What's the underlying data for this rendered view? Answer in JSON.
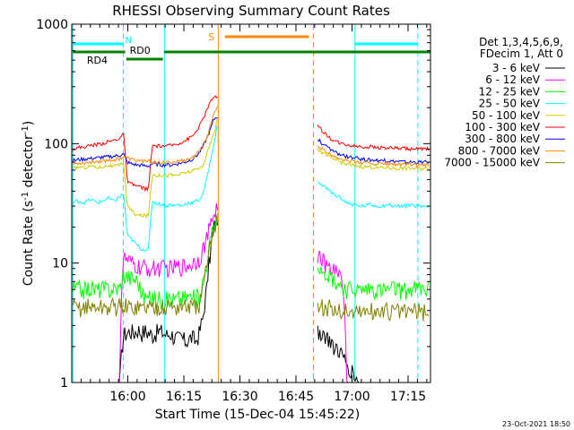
{
  "chart_data": {
    "type": "line",
    "title": "RHESSI Observing Summary Count Rates",
    "xlabel": "Start Time (15-Dec-04 15:45:22)",
    "ylabel": "Count Rate (s⁻¹ detector⁻¹)",
    "ylabel_main": "Count Rate (s",
    "ylabel_sup1": "-1",
    "ylabel_mid": " detector",
    "ylabel_sup2": "-1",
    "ylabel_end": ")",
    "yscale": "log",
    "ylim": [
      1,
      1000
    ],
    "xlim_minutes": [
      0,
      96
    ],
    "x_tick_labels": [
      "16:00",
      "16:15",
      "16:30",
      "16:45",
      "17:00",
      "17:15"
    ],
    "x_tick_minutes": [
      15,
      30,
      45,
      60,
      75,
      90
    ],
    "y_tick_labels": [
      "1",
      "10",
      "100",
      "1000"
    ],
    "y_tick_values": [
      1,
      10,
      100,
      1000
    ],
    "legend_header": [
      "Det 1,3,4,5,6,9,",
      "FDecim 1, Att 0"
    ],
    "legend_position": "right",
    "series": [
      {
        "name": "3 - 6 keV",
        "color": "#000000",
        "pre": [
          1,
          1,
          1,
          1,
          1,
          1,
          1,
          1,
          1,
          1,
          1,
          1,
          1,
          1,
          2.5,
          2.6,
          2.7,
          2.6,
          2.8,
          2.6,
          2.7,
          2.6,
          2.5,
          2.6,
          2.7,
          2.6,
          2.5,
          2.6,
          2.4,
          2.3,
          2.4,
          2.2,
          2.3,
          2.4,
          2.2,
          2.6,
          3.5,
          6,
          12,
          20,
          24
        ],
        "post": [
          2.7,
          2.5,
          2.2,
          2.0,
          1.7,
          1.4,
          1.2,
          1.0,
          1.0,
          1.0,
          1.0,
          1.0,
          1.0,
          1.0,
          1.0,
          1.0,
          1.0,
          1.0,
          1.0,
          1.0
        ]
      },
      {
        "name": "6 - 12 keV",
        "color": "#ff00ff",
        "pre": [
          1,
          1,
          1,
          1,
          1,
          1,
          1,
          1,
          1,
          1,
          1,
          1,
          1,
          1,
          11,
          10.5,
          10,
          9.5,
          9.3,
          9,
          9.2,
          9,
          9,
          9.1,
          9.2,
          9,
          9.1,
          9,
          9.2,
          9.3,
          9.4,
          9.5,
          9.7,
          10,
          10.5,
          11,
          13,
          16,
          20,
          26,
          30
        ],
        "post": [
          12,
          10,
          9,
          8.5,
          7.6,
          1,
          1,
          1,
          1,
          1,
          1,
          1,
          1,
          1,
          1,
          1,
          1,
          1,
          1,
          1
        ]
      },
      {
        "name": "12 - 25 keV",
        "color": "#00ff00",
        "pre": [
          6,
          6.1,
          6.2,
          6.0,
          6.1,
          6.2,
          6.1,
          6.0,
          6.2,
          6.1,
          6.0,
          6.2,
          6.1,
          6.2,
          8,
          7.8,
          7.6,
          7.4,
          7.2,
          5.5,
          5.2,
          5.0,
          5.2,
          5.0,
          5.1,
          4.8,
          5.0,
          5.2,
          4.9,
          5.1,
          5.0,
          5.2,
          5.3,
          5.1,
          5.2,
          5.3,
          7,
          10,
          15,
          20,
          25
        ],
        "post": [
          10,
          9,
          8,
          7,
          6.5,
          6,
          6.1,
          5.9,
          6,
          6.1,
          6,
          5.9,
          6,
          6.1,
          6,
          5.9,
          6,
          6.1,
          6,
          6
        ]
      },
      {
        "name": "25 - 50 keV",
        "color": "#00ffff",
        "pre": [
          32,
          33,
          33,
          32,
          33,
          34,
          33,
          32,
          33,
          34,
          35,
          33,
          34,
          36,
          38,
          17,
          16,
          15,
          14,
          13,
          13,
          13,
          33,
          32,
          31,
          31,
          30,
          31,
          30,
          31,
          30,
          31,
          32,
          32,
          33,
          34,
          38,
          50,
          70,
          100,
          140
        ],
        "post": [
          48,
          44,
          40,
          37,
          35,
          32,
          31,
          30,
          30,
          31,
          30,
          30,
          31,
          30,
          30,
          30,
          31,
          30,
          30,
          30
        ]
      },
      {
        "name": "50 - 100 keV",
        "color": "#cccc00",
        "pre": [
          62,
          63,
          64,
          63,
          64,
          65,
          64,
          63,
          64,
          65,
          66,
          64,
          65,
          66,
          70,
          30,
          28,
          26,
          25,
          25,
          25,
          25,
          55,
          55,
          54,
          55,
          54,
          55,
          54,
          55,
          56,
          57,
          58,
          59,
          60,
          62,
          66,
          80,
          100,
          120,
          160
        ],
        "post": [
          90,
          82,
          77,
          73,
          70,
          67,
          66,
          65,
          64,
          64,
          63,
          63,
          63,
          62,
          62,
          62,
          62,
          62,
          62,
          62
        ]
      },
      {
        "name": "100 - 300 keV",
        "color": "#ff0000",
        "pre": [
          90,
          92,
          93,
          94,
          95,
          97,
          98,
          99,
          100,
          102,
          104,
          106,
          108,
          112,
          120,
          48,
          46,
          45,
          44,
          43,
          42,
          42,
          95,
          96,
          95,
          96,
          95,
          97,
          98,
          100,
          103,
          106,
          110,
          115,
          125,
          140,
          160,
          190,
          220,
          250,
          240
        ],
        "post": [
          140,
          125,
          112,
          105,
          100,
          98,
          96,
          95,
          94,
          94,
          93,
          93,
          92,
          92,
          91,
          91,
          90,
          90,
          90,
          90
        ]
      },
      {
        "name": "300 - 800 keV",
        "color": "#0000ff",
        "pre": [
          72,
          73,
          74,
          74,
          75,
          75,
          76,
          76,
          77,
          77,
          78,
          78,
          79,
          80,
          82,
          70,
          68,
          67,
          66,
          66,
          65,
          65,
          68,
          67,
          67,
          66,
          67,
          66,
          67,
          68,
          69,
          70,
          72,
          74,
          78,
          84,
          95,
          110,
          130,
          160,
          170
        ],
        "post": [
          110,
          98,
          90,
          85,
          80,
          78,
          76,
          75,
          74,
          73,
          73,
          72,
          72,
          71,
          71,
          70,
          70,
          70,
          70,
          70
        ]
      },
      {
        "name": "800 - 7000 keV",
        "color": "#ff8800",
        "pre": [
          68,
          68,
          69,
          69,
          70,
          70,
          71,
          71,
          72,
          72,
          73,
          73,
          74,
          75,
          78,
          76,
          74,
          73,
          72,
          72,
          71,
          71,
          70,
          70,
          69,
          69,
          69,
          70,
          70,
          71,
          72,
          73,
          74,
          76,
          80,
          86,
          95,
          110,
          140,
          180,
          210
        ],
        "post": [
          95,
          88,
          82,
          78,
          75,
          72,
          71,
          70,
          69,
          69,
          68,
          68,
          68,
          67,
          67,
          67,
          67,
          66,
          66,
          66
        ]
      },
      {
        "name": "7000 - 15000 keV",
        "color": "#808000",
        "pre": [
          4.2,
          4.3,
          4.2,
          4.3,
          4.4,
          4.2,
          4.3,
          4.4,
          4.2,
          4.3,
          4.2,
          4.4,
          4.3,
          4.4,
          4.5,
          4.3,
          4.2,
          4.4,
          4.3,
          4.2,
          4.3,
          4.4,
          4.2,
          4.3,
          4.4,
          4.2,
          4.3,
          4.4,
          4.3,
          4.2,
          4.4,
          4.3,
          4.4,
          4.2,
          4.3,
          4.5,
          6,
          9,
          14,
          20,
          24
        ],
        "post": [
          4.5,
          4.3,
          4.2,
          4.1,
          4.0,
          4.0,
          3.9,
          4.0,
          3.9,
          4.0,
          3.9,
          4.0,
          4.0,
          3.9,
          4.0,
          3.9,
          4.0,
          4.0,
          3.9,
          4.0
        ]
      }
    ],
    "intervals": [
      {
        "label": "N",
        "color": "#00ffff",
        "kind": "night"
      },
      {
        "label": "RD0",
        "color": "#008000",
        "kind": "raddecim"
      },
      {
        "label": "RD4",
        "color": "#008000",
        "kind": "raddecim"
      },
      {
        "label": "S",
        "color": "#ff8800",
        "kind": "saa"
      }
    ],
    "timestamp": "23-Oct-2021 18:50"
  }
}
